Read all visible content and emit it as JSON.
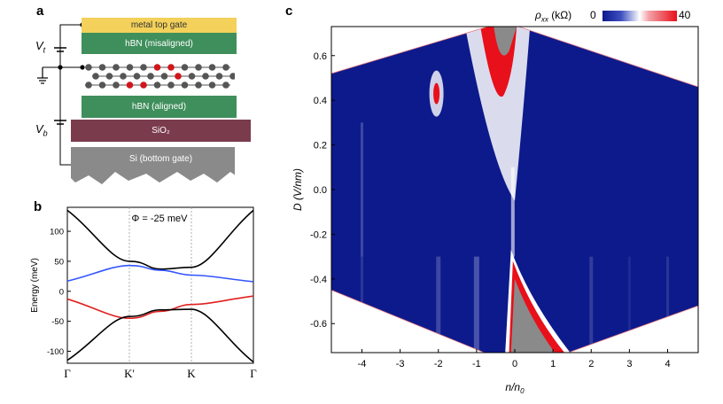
{
  "panel_a": {
    "label": "a",
    "layers": {
      "top_gate": "metal top gate",
      "hbn_top": "hBN (misaligned)",
      "hbn_bottom": "hBN (aligned)",
      "sio2": "SiO₂",
      "si": "Si (bottom gate)"
    },
    "vt": "V",
    "vt_sub": "t",
    "vb": "V",
    "vb_sub": "b",
    "colors": {
      "gold": "#f3d15a",
      "green": "#3f8f5c",
      "sio2": "#7a3b4d",
      "si": "#8a8a8a",
      "atom": "#555555",
      "atom_highlight": "#d0151b"
    }
  },
  "panel_b": {
    "label": "b",
    "annotation": "Φ = -25 meV",
    "ylabel": "Energy (meV)",
    "yticks": [
      "100",
      "50",
      "0",
      "-50",
      "-100"
    ],
    "xticks": [
      "Γ",
      "K'",
      "K",
      "Γ"
    ]
  },
  "panel_c": {
    "label": "c",
    "colorbar_label": "ρ",
    "colorbar_sub": "xx",
    "colorbar_unit": " (kΩ)",
    "colorbar_min": "0",
    "colorbar_max": "40",
    "ylabel": "D (V/nm)",
    "xlabel": "n/n",
    "xlabel_sub": "0",
    "yticks": [
      "0.6",
      "0.4",
      "0.2",
      "0.0",
      "-0.2",
      "-0.4",
      "-0.6"
    ],
    "xticks": [
      "-4",
      "-3",
      "-2",
      "-1",
      "0",
      "1",
      "2",
      "3",
      "4"
    ],
    "colors": {
      "low": "#0d1a8c",
      "mid": "#ffffff",
      "high": "#e8101a",
      "out": "#8a8a8a"
    }
  },
  "chart_data": [
    {
      "type": "line",
      "panel": "b",
      "title": "Φ = -25 meV",
      "xlabel": "",
      "ylabel": "Energy (meV)",
      "ylim": [
        -120,
        140
      ],
      "categories": [
        "Γ",
        "K'",
        "K",
        "Γ"
      ],
      "x": [
        0,
        1,
        2,
        3
      ],
      "series": [
        {
          "color": "#000000",
          "values": [
            135,
            50,
            40,
            135
          ]
        },
        {
          "color": "#3355ff",
          "values": [
            17,
            43,
            27,
            16
          ]
        },
        {
          "color": "#e02020",
          "values": [
            -13,
            -45,
            -22,
            -8
          ]
        },
        {
          "color": "#000000",
          "values": [
            -115,
            -42,
            -30,
            -118
          ]
        }
      ]
    },
    {
      "type": "heatmap",
      "panel": "c",
      "xlabel": "n/n0",
      "ylabel": "D (V/nm)",
      "xlim": [
        -4.8,
        4.8
      ],
      "ylim": [
        -0.73,
        0.73
      ],
      "zlabel": "ρxx (kΩ)",
      "zlim": [
        0,
        40
      ],
      "measured_region_corners": [
        [
          -4.8,
          0.52
        ],
        [
          -0.7,
          0.73
        ],
        [
          0.1,
          0.73
        ],
        [
          4.8,
          0.46
        ],
        [
          4.8,
          -0.52
        ],
        [
          1.4,
          -0.73
        ],
        [
          -0.8,
          -0.73
        ],
        [
          -4.8,
          -0.45
        ]
      ]
    }
  ]
}
